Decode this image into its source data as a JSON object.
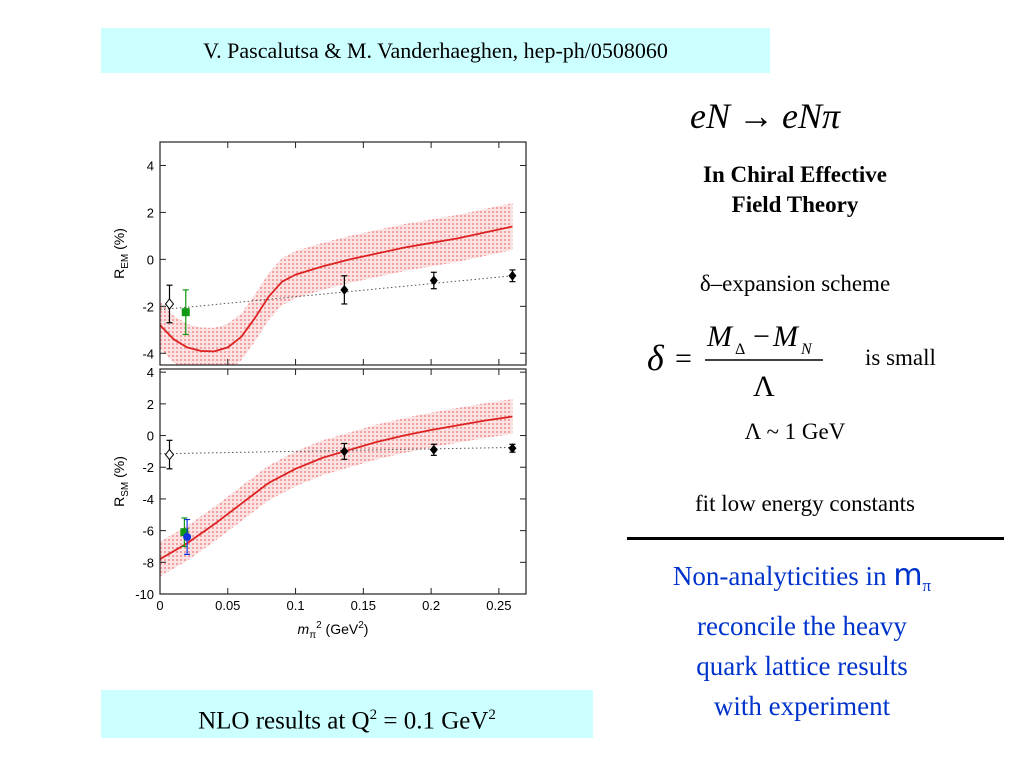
{
  "header": {
    "citation": "V. Pascalutsa & M. Vanderhaeghen, hep-ph/0508060"
  },
  "reaction": {
    "lhs": "eN",
    "arrow": "→",
    "rhs": "eNπ"
  },
  "theory": {
    "line1": "In Chiral Effective",
    "line2": "Field Theory"
  },
  "scheme": {
    "label": "δ–expansion scheme"
  },
  "formula": {
    "lhs": "δ",
    "equals": "=",
    "num_a": "M",
    "num_a_sub": "Δ",
    "minus": "−",
    "num_b": "M",
    "num_b_sub": "N",
    "denominator": "Λ",
    "note": "is small"
  },
  "lambda_scale": "Λ ~ 1 GeV",
  "fit_note": "fit low energy constants",
  "conclusion": {
    "line1_pre": "Non-analyticities in ",
    "line1_m": "m",
    "line1_sub": "π",
    "line2": "reconcile the heavy",
    "line3": "quark lattice results",
    "line4": "with experiment"
  },
  "footer": {
    "nlo_pre": "NLO results at Q",
    "sup1": "2",
    "nlo_mid": " = 0.1 GeV",
    "sup2": "2"
  },
  "colors": {
    "box_bg": "#ccffff",
    "curve": "#dd2222",
    "band": "#f2a0a0",
    "conclusion": "#0033cc",
    "green_point": "#119911",
    "blue_point": "#1133dd"
  },
  "chart_data": [
    {
      "type": "line",
      "name": "R_EM panel",
      "ylabel": "R_EM (%)",
      "xlim": [
        0,
        0.27
      ],
      "ylim": [
        -4.5,
        5
      ],
      "yticks": [
        4,
        2,
        0,
        -2,
        -4
      ],
      "band_halfwidth": 1.0,
      "curve": {
        "x": [
          0.0,
          0.01,
          0.02,
          0.03,
          0.04,
          0.05,
          0.06,
          0.07,
          0.08,
          0.09,
          0.1,
          0.12,
          0.14,
          0.16,
          0.18,
          0.2,
          0.22,
          0.24,
          0.26
        ],
        "y": [
          -2.8,
          -3.4,
          -3.75,
          -3.9,
          -3.92,
          -3.75,
          -3.3,
          -2.5,
          -1.6,
          -0.95,
          -0.65,
          -0.3,
          0.0,
          0.25,
          0.5,
          0.7,
          0.9,
          1.15,
          1.4
        ]
      },
      "dotted_fit": {
        "x": [
          0.0,
          0.26
        ],
        "y": [
          -2.15,
          -0.7
        ]
      },
      "points": [
        {
          "x": 0.007,
          "y": -1.9,
          "err": 0.8,
          "style": "open-diamond"
        },
        {
          "x": 0.019,
          "y": -2.25,
          "err": 0.95,
          "style": "green-square"
        },
        {
          "x": 0.136,
          "y": -1.3,
          "err": 0.6,
          "style": "black-diamond"
        },
        {
          "x": 0.202,
          "y": -0.9,
          "err": 0.35,
          "style": "black-diamond"
        },
        {
          "x": 0.26,
          "y": -0.7,
          "err": 0.25,
          "style": "black-diamond"
        }
      ]
    },
    {
      "type": "line",
      "name": "R_SM panel",
      "ylabel": "R_SM (%)",
      "xlabel": "m_π² (GeV²)",
      "xlim": [
        0,
        0.27
      ],
      "ylim": [
        -10,
        4.2
      ],
      "yticks": [
        4,
        2,
        0,
        -2,
        -4,
        -6,
        -8,
        -10
      ],
      "xticks": [
        "0",
        "0.05",
        "0.1",
        "0.15",
        "0.2",
        "0.25"
      ],
      "xtick_values": [
        0,
        0.05,
        0.1,
        0.15,
        0.2,
        0.25
      ],
      "band_halfwidth": 1.1,
      "curve": {
        "x": [
          0.0,
          0.02,
          0.04,
          0.06,
          0.08,
          0.1,
          0.12,
          0.14,
          0.16,
          0.18,
          0.2,
          0.22,
          0.24,
          0.26
        ],
        "y": [
          -7.8,
          -6.8,
          -5.6,
          -4.3,
          -3.0,
          -2.1,
          -1.4,
          -0.9,
          -0.4,
          0.0,
          0.35,
          0.65,
          0.95,
          1.2
        ]
      },
      "dotted_fit": {
        "x": [
          0.0,
          0.26
        ],
        "y": [
          -1.15,
          -0.75
        ]
      },
      "points": [
        {
          "x": 0.007,
          "y": -1.2,
          "err": 0.9,
          "style": "open-diamond"
        },
        {
          "x": 0.018,
          "y": -6.1,
          "err": 0.9,
          "style": "green-square"
        },
        {
          "x": 0.02,
          "y": -6.4,
          "err": 1.1,
          "style": "blue-circle"
        },
        {
          "x": 0.136,
          "y": -1.0,
          "err": 0.5,
          "style": "black-diamond"
        },
        {
          "x": 0.202,
          "y": -0.9,
          "err": 0.35,
          "style": "black-diamond"
        },
        {
          "x": 0.26,
          "y": -0.8,
          "err": 0.25,
          "style": "black-diamond"
        }
      ]
    }
  ]
}
